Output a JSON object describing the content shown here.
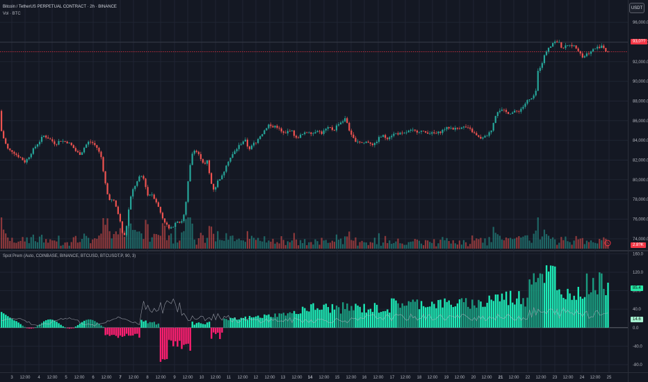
{
  "header": {
    "title": "Bitcoin / TetherUS PERPETUAL CONTRACT · 2h · BINANCE",
    "volume_label": "Vol · BTC",
    "currency_button": "USDT"
  },
  "indicator": {
    "label": "Spot Prem (Auto, COINBASE, BINANCE, BTCUSD, BTCUSDT.P, 90, 3)"
  },
  "price_badge": {
    "value": "93,0??",
    "color": "#f23645"
  },
  "volume_badge": {
    "value": "2.8?K",
    "color": "#f23645"
  },
  "prem_badges": [
    {
      "value": "85.4",
      "color": "#26e8a6"
    },
    {
      "value": "14.6",
      "color": "#a6f0d0"
    }
  ],
  "colors": {
    "up": "#26a69a",
    "down": "#ef5350",
    "prem_pos": "#1de9b6",
    "prem_pos_dark": "#1a9c80",
    "prem_neg": "#ff1f71",
    "prem_line": "#b8bcc6",
    "price_line": "#f23645",
    "bg": "#141823",
    "grid": "#1f2433",
    "text": "#b2b5be"
  },
  "chart_data": [
    {
      "type": "candlestick",
      "title": "Bitcoin / TetherUS PERPETUAL CONTRACT · 2h · BINANCE",
      "price_axis_ticks": [
        74000,
        76000,
        78000,
        80000,
        82000,
        84000,
        86000,
        88000,
        90000,
        92000,
        94000,
        96000
      ],
      "price_axis_labels": [
        "74,000.0",
        "76,000.0",
        "78,000.0",
        "80,000.0",
        "82,000.0",
        "84,000.0",
        "86,000.0",
        "88,000.0",
        "90,000.0",
        "92,000.0",
        "94,000.0",
        "96,000.0"
      ],
      "ylim": [
        73000,
        96500
      ],
      "current_price_level": 93000,
      "price_path": [
        [
          0,
          87000
        ],
        [
          3,
          85200
        ],
        [
          8,
          84000
        ],
        [
          14,
          83000
        ],
        [
          20,
          82900
        ],
        [
          26,
          82500
        ],
        [
          32,
          82200
        ],
        [
          38,
          81800
        ],
        [
          44,
          82400
        ],
        [
          48,
          82900
        ],
        [
          54,
          83500
        ],
        [
          60,
          84000
        ],
        [
          64,
          84500
        ],
        [
          70,
          84300
        ],
        [
          76,
          84000
        ],
        [
          82,
          83600
        ],
        [
          88,
          84000
        ],
        [
          94,
          83900
        ],
        [
          100,
          83800
        ],
        [
          106,
          83400
        ],
        [
          112,
          82800
        ],
        [
          118,
          82600
        ],
        [
          124,
          83400
        ],
        [
          130,
          83900
        ],
        [
          136,
          83700
        ],
        [
          142,
          83200
        ],
        [
          148,
          82200
        ],
        [
          152,
          80200
        ],
        [
          156,
          78600
        ],
        [
          160,
          78000
        ],
        [
          166,
          77800
        ],
        [
          170,
          77000
        ],
        [
          174,
          76000
        ],
        [
          178,
          74600
        ],
        [
          182,
          74200
        ],
        [
          186,
          76500
        ],
        [
          190,
          78200
        ],
        [
          194,
          79200
        ],
        [
          198,
          79600
        ],
        [
          202,
          80200
        ],
        [
          206,
          80400
        ],
        [
          210,
          79900
        ],
        [
          214,
          78400
        ],
        [
          220,
          78600
        ],
        [
          226,
          77900
        ],
        [
          232,
          76800
        ],
        [
          236,
          76100
        ],
        [
          240,
          75600
        ],
        [
          246,
          74900
        ],
        [
          250,
          75200
        ],
        [
          256,
          75900
        ],
        [
          262,
          75600
        ],
        [
          268,
          76700
        ],
        [
          272,
          79500
        ],
        [
          276,
          81700
        ],
        [
          280,
          83200
        ],
        [
          284,
          82900
        ],
        [
          290,
          82300
        ],
        [
          296,
          81500
        ],
        [
          300,
          81900
        ],
        [
          304,
          80200
        ],
        [
          308,
          79000
        ],
        [
          312,
          79300
        ],
        [
          316,
          80000
        ],
        [
          322,
          80400
        ],
        [
          328,
          81700
        ],
        [
          334,
          82300
        ],
        [
          340,
          82900
        ],
        [
          346,
          83500
        ],
        [
          350,
          83800
        ],
        [
          354,
          84100
        ],
        [
          358,
          83400
        ],
        [
          362,
          83100
        ],
        [
          366,
          83700
        ],
        [
          370,
          83700
        ],
        [
          374,
          84400
        ],
        [
          378,
          84600
        ],
        [
          382,
          85000
        ],
        [
          388,
          85600
        ],
        [
          394,
          85300
        ],
        [
          398,
          85500
        ],
        [
          402,
          85300
        ],
        [
          406,
          84900
        ],
        [
          412,
          84600
        ],
        [
          418,
          85100
        ],
        [
          422,
          84900
        ],
        [
          428,
          84200
        ],
        [
          434,
          84500
        ],
        [
          440,
          84700
        ],
        [
          446,
          84900
        ],
        [
          452,
          84700
        ],
        [
          458,
          85100
        ],
        [
          464,
          84700
        ],
        [
          470,
          85100
        ],
        [
          476,
          85300
        ],
        [
          482,
          85000
        ],
        [
          488,
          85700
        ],
        [
          494,
          85900
        ],
        [
          498,
          86200
        ],
        [
          502,
          85700
        ],
        [
          506,
          84600
        ],
        [
          512,
          84000
        ],
        [
          518,
          83900
        ],
        [
          524,
          83700
        ],
        [
          530,
          83900
        ],
        [
          536,
          83700
        ],
        [
          540,
          83500
        ],
        [
          546,
          84200
        ],
        [
          552,
          84500
        ],
        [
          558,
          84200
        ],
        [
          564,
          84500
        ],
        [
          570,
          84700
        ],
        [
          576,
          84700
        ],
        [
          582,
          84600
        ],
        [
          588,
          84900
        ],
        [
          594,
          85000
        ],
        [
          600,
          84900
        ],
        [
          606,
          85000
        ],
        [
          612,
          84800
        ],
        [
          618,
          84800
        ],
        [
          624,
          84700
        ],
        [
          630,
          84700
        ],
        [
          636,
          84900
        ],
        [
          642,
          85200
        ],
        [
          648,
          85300
        ],
        [
          654,
          85200
        ],
        [
          660,
          85200
        ],
        [
          666,
          85400
        ],
        [
          672,
          85300
        ],
        [
          678,
          85100
        ],
        [
          684,
          84700
        ],
        [
          690,
          84300
        ],
        [
          696,
          84200
        ],
        [
          702,
          84500
        ],
        [
          708,
          84900
        ],
        [
          712,
          85900
        ],
        [
          716,
          86900
        ],
        [
          720,
          87100
        ],
        [
          726,
          87000
        ],
        [
          732,
          86800
        ],
        [
          738,
          86800
        ],
        [
          742,
          86900
        ],
        [
          748,
          87000
        ],
        [
          754,
          87400
        ],
        [
          760,
          88000
        ],
        [
          766,
          88200
        ],
        [
          772,
          88600
        ],
        [
          776,
          91200
        ],
        [
          780,
          91600
        ],
        [
          786,
          92800
        ],
        [
          790,
          93400
        ],
        [
          796,
          93800
        ],
        [
          800,
          94100
        ],
        [
          806,
          93900
        ],
        [
          810,
          93400
        ],
        [
          814,
          93500
        ],
        [
          818,
          93600
        ],
        [
          822,
          93800
        ],
        [
          826,
          93600
        ],
        [
          830,
          93500
        ],
        [
          836,
          93000
        ],
        [
          840,
          92400
        ],
        [
          844,
          92700
        ],
        [
          848,
          92900
        ],
        [
          852,
          93000
        ],
        [
          856,
          93300
        ],
        [
          860,
          93400
        ],
        [
          864,
          93500
        ],
        [
          868,
          93700
        ],
        [
          874,
          93000
        ]
      ]
    },
    {
      "type": "bar",
      "title": "Vol · BTC",
      "description_values": "per-candle volume, relative scale"
    },
    {
      "type": "bar",
      "title": "Spot Prem (Auto, COINBASE, BINANCE, BTCUSD, BTCUSDT.P, 90, 3)",
      "axis_ticks": [
        160,
        120,
        80,
        40,
        0,
        -40,
        -80
      ],
      "axis_labels": [
        "160.0",
        "120.0",
        "80.0",
        "40.0",
        "0.0",
        "-40.0",
        "-80.0"
      ],
      "ylim": [
        -95,
        165
      ],
      "last_value": 85.4,
      "line_last_value": 14.6
    }
  ],
  "time_axis": [
    {
      "label": "3",
      "x": 17,
      "bold": false
    },
    {
      "label": "12:00",
      "x": 36,
      "bold": false
    },
    {
      "label": "4",
      "x": 56,
      "bold": false
    },
    {
      "label": "12:00",
      "x": 75,
      "bold": false
    },
    {
      "label": "5",
      "x": 95,
      "bold": false
    },
    {
      "label": "12:00",
      "x": 114,
      "bold": false
    },
    {
      "label": "6",
      "x": 134,
      "bold": false
    },
    {
      "label": "12:00",
      "x": 153,
      "bold": false
    },
    {
      "label": "7",
      "x": 173,
      "bold": true
    },
    {
      "label": "12:00",
      "x": 192,
      "bold": false
    },
    {
      "label": "8",
      "x": 212,
      "bold": false
    },
    {
      "label": "12:00",
      "x": 231,
      "bold": false
    },
    {
      "label": "9",
      "x": 251,
      "bold": false
    },
    {
      "label": "12:00",
      "x": 270,
      "bold": false
    },
    {
      "label": "10",
      "x": 290,
      "bold": false
    },
    {
      "label": "12:00",
      "x": 310,
      "bold": false
    },
    {
      "label": "11",
      "x": 329,
      "bold": false
    },
    {
      "label": "12:00",
      "x": 349,
      "bold": false
    },
    {
      "label": "12",
      "x": 368,
      "bold": false
    },
    {
      "label": "12:00",
      "x": 388,
      "bold": false
    },
    {
      "label": "13",
      "x": 407,
      "bold": false
    },
    {
      "label": "12:00",
      "x": 427,
      "bold": false
    },
    {
      "label": "14",
      "x": 446,
      "bold": true
    },
    {
      "label": "12:00",
      "x": 466,
      "bold": false
    },
    {
      "label": "15",
      "x": 485,
      "bold": false
    },
    {
      "label": "12:00",
      "x": 505,
      "bold": false
    },
    {
      "label": "16",
      "x": 524,
      "bold": false
    },
    {
      "label": "12:00",
      "x": 544,
      "bold": false
    },
    {
      "label": "17",
      "x": 564,
      "bold": false
    },
    {
      "label": "12:00",
      "x": 583,
      "bold": false
    },
    {
      "label": "18",
      "x": 603,
      "bold": false
    },
    {
      "label": "12:00",
      "x": 622,
      "bold": false
    },
    {
      "label": "19",
      "x": 642,
      "bold": false
    },
    {
      "label": "12:00",
      "x": 661,
      "bold": false
    },
    {
      "label": "20",
      "x": 681,
      "bold": false
    },
    {
      "label": "12:00",
      "x": 700,
      "bold": false
    },
    {
      "label": "21",
      "x": 720,
      "bold": true
    },
    {
      "label": "12:00",
      "x": 739,
      "bold": false
    },
    {
      "label": "22",
      "x": 759,
      "bold": false
    },
    {
      "label": "12:00",
      "x": 778,
      "bold": false
    },
    {
      "label": "23",
      "x": 798,
      "bold": false
    },
    {
      "label": "12:00",
      "x": 817,
      "bold": false
    },
    {
      "label": "24",
      "x": 837,
      "bold": false
    },
    {
      "label": "12:00",
      "x": 856,
      "bold": false
    },
    {
      "label": "25",
      "x": 876,
      "bold": false
    }
  ]
}
